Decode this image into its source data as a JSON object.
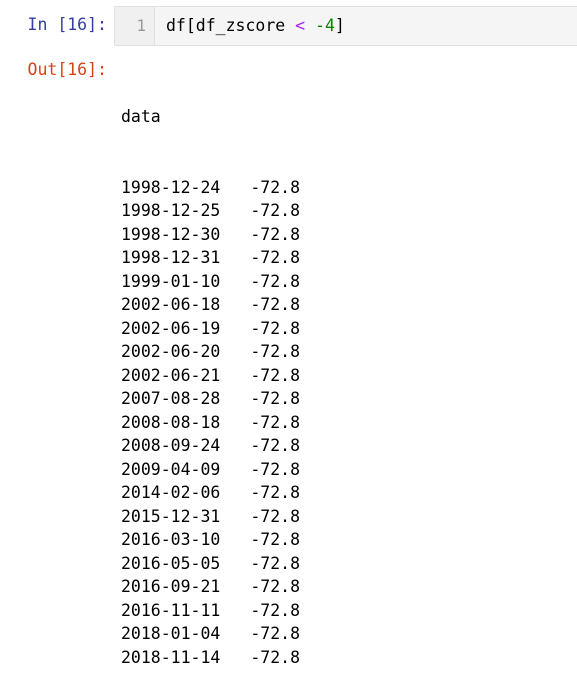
{
  "input_cell": {
    "prompt": "In [16]:",
    "line_number": "1",
    "code": {
      "part1": "df[df_zscore ",
      "operator": "<",
      "part2": " ",
      "number": "-4",
      "part3": "]"
    }
  },
  "output_cell": {
    "prompt": "Out[16]:",
    "header": "data",
    "rows": [
      {
        "date": "1998-12-24",
        "value": "-72.8"
      },
      {
        "date": "1998-12-25",
        "value": "-72.8"
      },
      {
        "date": "1998-12-30",
        "value": "-72.8"
      },
      {
        "date": "1998-12-31",
        "value": "-72.8"
      },
      {
        "date": "1999-01-10",
        "value": "-72.8"
      },
      {
        "date": "2002-06-18",
        "value": "-72.8"
      },
      {
        "date": "2002-06-19",
        "value": "-72.8"
      },
      {
        "date": "2002-06-20",
        "value": "-72.8"
      },
      {
        "date": "2002-06-21",
        "value": "-72.8"
      },
      {
        "date": "2007-08-28",
        "value": "-72.8"
      },
      {
        "date": "2008-08-18",
        "value": "-72.8"
      },
      {
        "date": "2008-09-24",
        "value": "-72.8"
      },
      {
        "date": "2009-04-09",
        "value": "-72.8"
      },
      {
        "date": "2014-02-06",
        "value": "-72.8"
      },
      {
        "date": "2015-12-31",
        "value": "-72.8"
      },
      {
        "date": "2016-03-10",
        "value": "-72.8"
      },
      {
        "date": "2016-05-05",
        "value": "-72.8"
      },
      {
        "date": "2016-09-21",
        "value": "-72.8"
      },
      {
        "date": "2016-11-11",
        "value": "-72.8"
      },
      {
        "date": "2018-01-04",
        "value": "-72.8"
      },
      {
        "date": "2018-11-14",
        "value": "-72.8"
      }
    ]
  }
}
